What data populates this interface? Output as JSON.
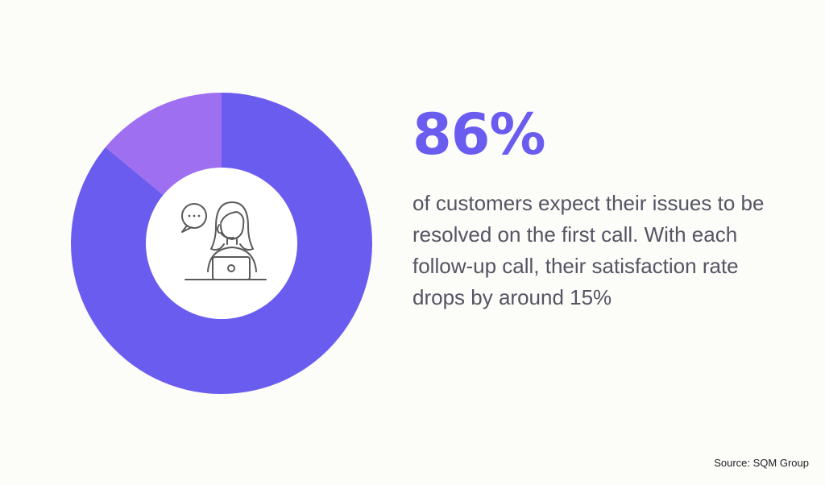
{
  "chart_data": {
    "type": "pie",
    "style": "donut",
    "slices": [
      {
        "value": 86,
        "color": "#6b5cf0"
      },
      {
        "value": 14,
        "color": "#9e6ff0"
      }
    ],
    "center_icon": "customer-support-agent-icon",
    "center_color": "#ffffff"
  },
  "stat": {
    "value": "86%",
    "color": "#6b5cf0"
  },
  "description": "of customers expect their issues to be resolved on the first call. With each follow-up call, their satisfaction rate drops by around 15%",
  "source": "Source: SQM Group",
  "colors": {
    "background": "#fcfcf9",
    "text": "#555463",
    "icon_stroke": "#5a5a5a"
  }
}
